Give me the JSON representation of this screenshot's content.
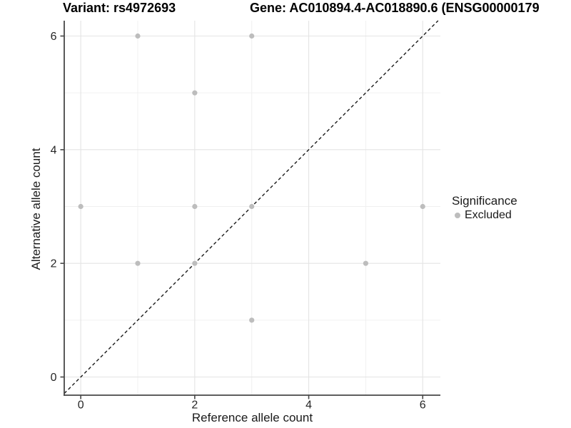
{
  "chart_data": {
    "type": "scatter",
    "titles": {
      "left": "Variant: rs4972693",
      "right": "Gene: AC010894.4-AC018890.6 (ENSG00000179"
    },
    "xlabel": "Reference allele count",
    "ylabel": "Alternative allele count",
    "xlim": [
      -0.29,
      6.31
    ],
    "ylim": [
      -0.32,
      6.27
    ],
    "x_ticks": [
      0,
      2,
      4,
      6
    ],
    "y_ticks": [
      0,
      2,
      4,
      6
    ],
    "minor_grid_x": [
      1,
      3,
      5
    ],
    "minor_grid_y": [
      1,
      3,
      5
    ],
    "grid": true,
    "series": [
      {
        "name": "Excluded",
        "color": "#bdbdbd",
        "points": [
          [
            0,
            3
          ],
          [
            1,
            2
          ],
          [
            1,
            6
          ],
          [
            2,
            2
          ],
          [
            2,
            3
          ],
          [
            2,
            5
          ],
          [
            3,
            1
          ],
          [
            3,
            3
          ],
          [
            3,
            6
          ],
          [
            5,
            2
          ],
          [
            6,
            3
          ]
        ]
      }
    ],
    "reference_line": {
      "type": "identity",
      "equation": "y = x",
      "style": "dashed",
      "color": "#1a1a1a"
    },
    "legend": {
      "title": "Significance",
      "position": "right",
      "items": [
        {
          "label": "Excluded",
          "color": "#bdbdbd"
        }
      ]
    },
    "style": {
      "major_grid_color": "#e4e4e4",
      "minor_grid_color": "#f0f0f0",
      "axis_line_color": "#474747",
      "tick_label_color": "#262626",
      "point_radius": 3.6
    }
  }
}
